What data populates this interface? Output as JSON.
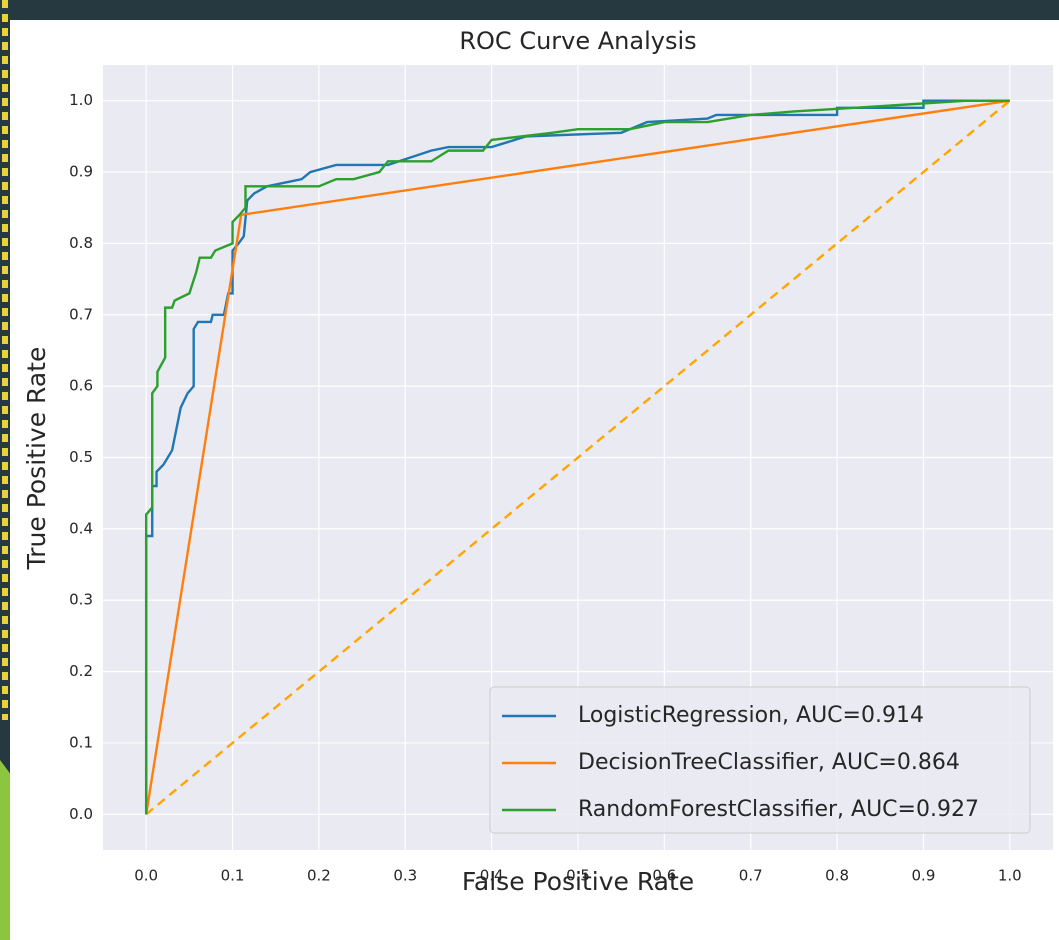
{
  "chart_data": {
    "type": "line",
    "title": "ROC Curve Analysis",
    "x_label": "False Positive Rate",
    "y_label": "True Positive Rate",
    "xlim": [
      -0.05,
      1.05
    ],
    "ylim": [
      -0.05,
      1.05
    ],
    "xticks": [
      {
        "value": 0,
        "label": "0.0"
      },
      {
        "value": 0.1,
        "label": "0.1"
      },
      {
        "value": 0.2,
        "label": "0.2"
      },
      {
        "value": 0.3,
        "label": "0.3"
      },
      {
        "value": 0.4,
        "label": "0.4"
      },
      {
        "value": 0.5,
        "label": "0.5"
      },
      {
        "value": 0.6,
        "label": "0.6"
      },
      {
        "value": 0.7,
        "label": "0.7"
      },
      {
        "value": 0.8,
        "label": "0.8"
      },
      {
        "value": 0.9,
        "label": "0.9"
      },
      {
        "value": 1,
        "label": "1.0"
      }
    ],
    "yticks": [
      {
        "value": 0,
        "label": "0.0"
      },
      {
        "value": 0.1,
        "label": "0.1"
      },
      {
        "value": 0.2,
        "label": "0.2"
      },
      {
        "value": 0.3,
        "label": "0.3"
      },
      {
        "value": 0.4,
        "label": "0.4"
      },
      {
        "value": 0.5,
        "label": "0.5"
      },
      {
        "value": 0.6,
        "label": "0.6"
      },
      {
        "value": 0.7,
        "label": "0.7"
      },
      {
        "value": 0.8,
        "label": "0.8"
      },
      {
        "value": 0.9,
        "label": "0.9"
      },
      {
        "value": 1,
        "label": "1.0"
      }
    ],
    "grid": true,
    "legend": "lower right",
    "series": [
      {
        "name": "LogisticRegression, AUC=0.914",
        "color": "#1f77b4",
        "x": [
          0,
          0,
          0.007,
          0.007,
          0.012,
          0.012,
          0.02,
          0.03,
          0.035,
          0.04,
          0.048,
          0.055,
          0.055,
          0.06,
          0.075,
          0.077,
          0.09,
          0.095,
          0.1,
          0.1,
          0.107,
          0.113,
          0.117,
          0.125,
          0.14,
          0.18,
          0.19,
          0.22,
          0.28,
          0.33,
          0.35,
          0.4,
          0.44,
          0.55,
          0.58,
          0.65,
          0.66,
          0.8,
          0.8,
          0.9,
          0.9,
          1
        ],
        "values": [
          0,
          0.39,
          0.39,
          0.46,
          0.46,
          0.48,
          0.49,
          0.51,
          0.54,
          0.57,
          0.59,
          0.6,
          0.68,
          0.69,
          0.69,
          0.7,
          0.7,
          0.73,
          0.73,
          0.79,
          0.8,
          0.81,
          0.86,
          0.87,
          0.88,
          0.89,
          0.9,
          0.91,
          0.91,
          0.93,
          0.935,
          0.935,
          0.95,
          0.955,
          0.97,
          0.975,
          0.98,
          0.98,
          0.99,
          0.99,
          1,
          1
        ]
      },
      {
        "name": "DecisionTreeClassifier, AUC=0.864",
        "color": "#ff7f0e",
        "x": [
          0,
          0.11,
          1
        ],
        "values": [
          0,
          0.84,
          1
        ]
      },
      {
        "name": "RandomForestClassifier, AUC=0.927",
        "color": "#2ca02c",
        "x": [
          0,
          0,
          0.007,
          0.007,
          0.013,
          0.013,
          0.022,
          0.022,
          0.03,
          0.033,
          0.05,
          0.058,
          0.062,
          0.075,
          0.08,
          0.1,
          0.1,
          0.108,
          0.115,
          0.115,
          0.2,
          0.22,
          0.24,
          0.27,
          0.28,
          0.33,
          0.35,
          0.39,
          0.4,
          0.47,
          0.5,
          0.56,
          0.6,
          0.65,
          0.7,
          0.75,
          0.82,
          0.95,
          1
        ],
        "values": [
          0,
          0.42,
          0.43,
          0.59,
          0.6,
          0.62,
          0.64,
          0.71,
          0.71,
          0.72,
          0.73,
          0.76,
          0.78,
          0.78,
          0.79,
          0.8,
          0.83,
          0.84,
          0.85,
          0.88,
          0.88,
          0.89,
          0.89,
          0.9,
          0.915,
          0.915,
          0.93,
          0.93,
          0.945,
          0.955,
          0.96,
          0.96,
          0.97,
          0.97,
          0.98,
          0.985,
          0.99,
          1,
          1
        ]
      }
    ],
    "diagonal": {
      "x": [
        0,
        1
      ],
      "values": [
        0,
        1
      ],
      "color": "#ffa500",
      "dashed": true
    }
  }
}
